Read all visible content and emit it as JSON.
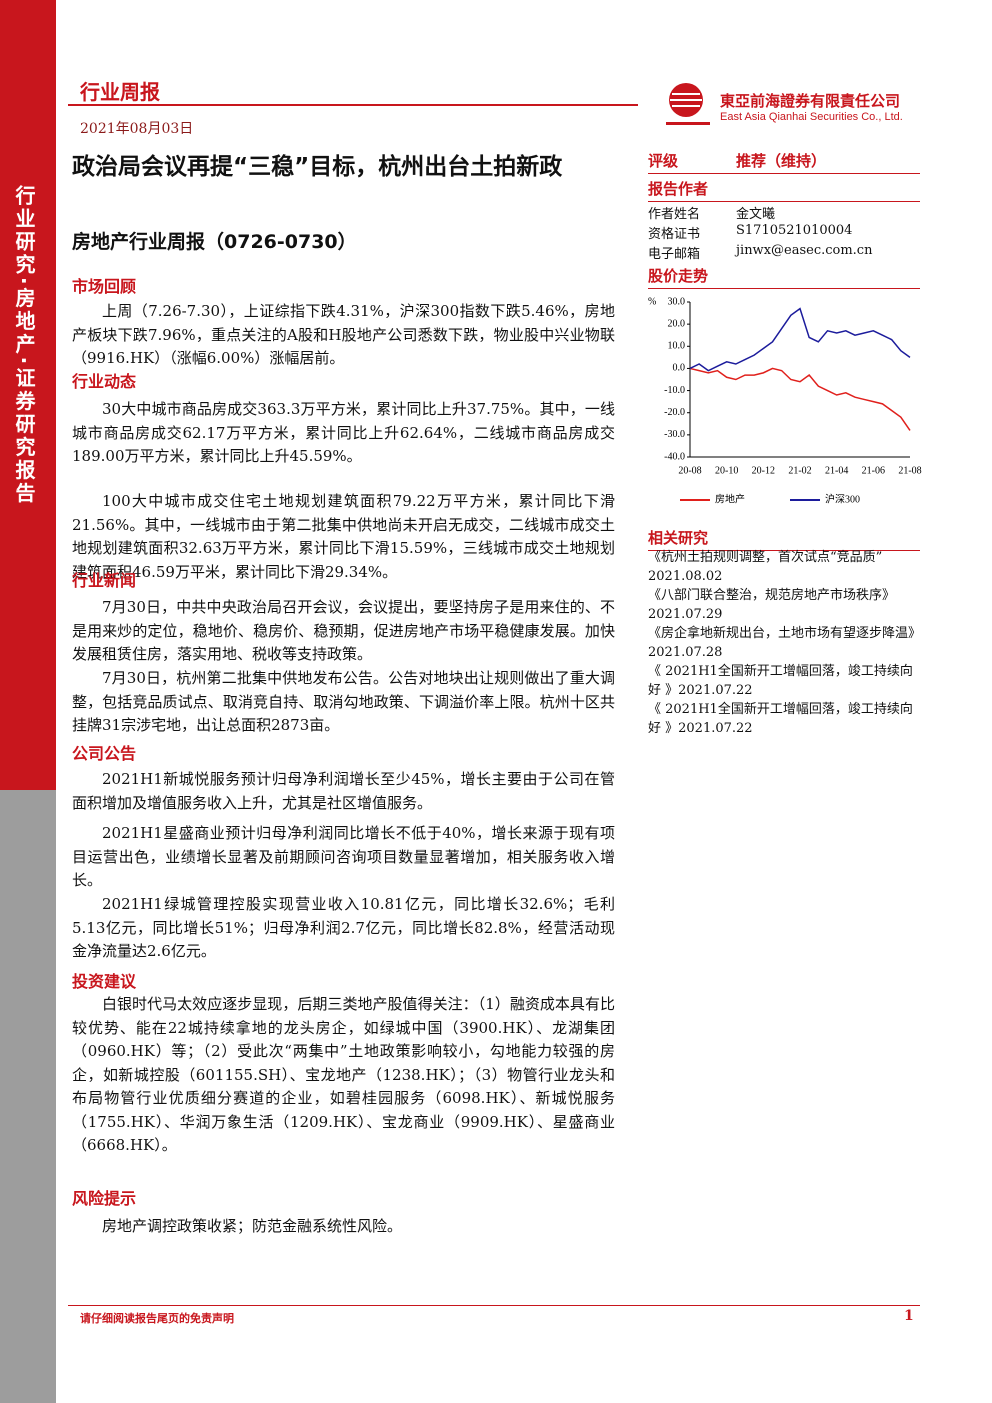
{
  "sidebar": "行业研究·房地产·证券研究报告",
  "header": {
    "report_type": "行业周报",
    "date": "2021年08月03日",
    "company_cn": "東亞前海證券有限責任公司",
    "company_en": "East Asia Qianhai Securities Co., Ltd."
  },
  "title": "政治局会议再提“三稳”目标，杭州出台土拍新政",
  "subtitle": "房地产行业周报（0726-0730）",
  "sections": [
    {
      "heading": "市场回顾",
      "paragraphs": [
        "上周（7.26-7.30），上证综指下跌4.31%，沪深300指数下跌5.46%，房地产板块下跌7.96%，重点关注的A股和H股地产公司悉数下跌，物业股中兴业物联（9916.HK）（涨幅6.00%）涨幅居前。"
      ]
    },
    {
      "heading": "行业动态",
      "paragraphs": [
        "30大中城市商品房成交363.3万平方米，累计同比上升37.75%。其中，一线城市商品房成交62.17万平方米，累计同比上升62.64%，二线城市商品房成交189.00万平方米，累计同比上升45.59%。",
        "100大中城市成交住宅土地规划建筑面积79.22万平方米，累计同比下滑21.56%。其中，一线城市由于第二批集中供地尚未开启无成交，二线城市成交土地规划建筑面积32.63万平方米，累计同比下滑15.59%，三线城市成交土地规划建筑面积46.59万平米，累计同比下滑29.34%。"
      ]
    },
    {
      "heading": "行业新闻",
      "paragraphs": [
        "7月30日，中共中央政治局召开会议，会议提出，要坚持房子是用来住的、不是用来炒的定位，稳地价、稳房价、稳预期，促进房地产市场平稳健康发展。加快发展租赁住房，落实用地、税收等支持政策。",
        "7月30日，杭州第二批集中供地发布公告。公告对地块出让规则做出了重大调整，包括竞品质试点、取消竞自持、取消勾地政策、下调溢价率上限。杭州十区共挂牌31宗涉宅地，出让总面积2873亩。"
      ]
    },
    {
      "heading": "公司公告",
      "paragraphs": [
        "2021H1新城悦服务预计归母净利润增长至少45%，增长主要由于公司在管面积增加及增值服务收入上升，尤其是社区增值服务。",
        "2021H1星盛商业预计归母净利润同比增长不低于40%，增长来源于现有项目运营出色，业绩增长显著及前期顾问咨询项目数量显著增加，相关服务收入增长。",
        "2021H1绿城管理控股实现营业收入10.81亿元，同比增长32.6%；毛利5.13亿元，同比增长51%；归母净利润2.7亿元，同比增长82.8%，经营活动现金净流量达2.6亿元。"
      ]
    },
    {
      "heading": "投资建议",
      "paragraphs": [
        "白银时代马太效应逐步显现，后期三类地产股值得关注：（1）融资成本具有比较优势、能在22城持续拿地的龙头房企，如绿城中国（3900.HK）、龙湖集团（0960.HK）等；（2）受此次“两集中”土地政策影响较小，勾地能力较强的房企，如新城控股（601155.SH）、宝龙地产（1238.HK）；（3）物管行业龙头和布局物管行业优质细分赛道的企业，如碧桂园服务（6098.HK）、新城悦服务（1755.HK）、华润万象生活（1209.HK）、宝龙商业（9909.HK）、星盛商业（6668.HK）。"
      ]
    },
    {
      "heading": "风险提示",
      "paragraphs": [
        "房地产调控政策收紧；防范金融系统性风险。"
      ]
    }
  ],
  "rating": {
    "label": "评级",
    "value": "推荐（维持）"
  },
  "authors": {
    "heading": "报告作者",
    "rows": [
      [
        "作者姓名",
        "金文曦"
      ],
      [
        "资格证书",
        "S1710521010004"
      ],
      [
        "电子邮箱",
        "jinwx@easec.com.cn"
      ]
    ]
  },
  "chart_heading": "股价走势",
  "chart_data": {
    "type": "line",
    "ylabel": "%",
    "x": [
      "20-08",
      null,
      null,
      null,
      "20-10",
      null,
      null,
      null,
      "20-12",
      null,
      null,
      null,
      "21-02",
      null,
      null,
      null,
      "21-04",
      null,
      null,
      null,
      "21-06",
      null,
      null,
      null,
      "21-08"
    ],
    "series": [
      {
        "name": "房地产",
        "color": "#e0201c",
        "values": [
          0,
          -1,
          -2,
          -1,
          -4,
          -5,
          -3,
          -3,
          -2,
          0,
          -1,
          -5,
          -6,
          -3,
          -8,
          -10,
          -12,
          -11,
          -13,
          -14,
          -15,
          -16,
          -19,
          -22,
          -28
        ]
      },
      {
        "name": "沪深300",
        "color": "#1c1c9c",
        "values": [
          0,
          2,
          -1,
          1,
          3,
          2,
          4,
          6,
          9,
          12,
          18,
          24,
          27,
          14,
          12,
          17,
          16,
          17,
          15,
          16,
          17,
          15,
          13,
          8,
          5
        ]
      }
    ],
    "ylim": [
      -40,
      30
    ],
    "yticks": [
      {
        "value": 30,
        "label": "30.0"
      },
      {
        "value": 20,
        "label": "20.0"
      },
      {
        "value": 10,
        "label": "10.0"
      },
      {
        "value": 0,
        "label": "0.0"
      },
      {
        "value": -10,
        "label": "-10.0"
      },
      {
        "value": -20,
        "label": "-20.0"
      },
      {
        "value": -30,
        "label": "-30.0"
      },
      {
        "value": -40,
        "label": "-40.0"
      }
    ]
  },
  "related": {
    "heading": "相关研究",
    "items": [
      {
        "title": "《杭州土拍规则调整，首次试点“竞品质”",
        "date": "2021.08.02"
      },
      {
        "title": "《八部门联合整治，规范房地产市场秩序》",
        "date": "2021.07.29"
      },
      {
        "title": "《房企拿地新规出台，土地市场有望逐步降温》",
        "date": "2021.07.28"
      },
      {
        "title": "《 2021H1全国新开工增幅回落，竣工持续向好 》",
        "date": "2021.07.22"
      },
      {
        "title": "《 2021H1全国新开工增幅回落，竣工持续向好 》",
        "date": "2021.07.22"
      }
    ]
  },
  "footer": {
    "disclaimer": "请仔细阅读报告尾页的免责声明",
    "page": 1
  }
}
